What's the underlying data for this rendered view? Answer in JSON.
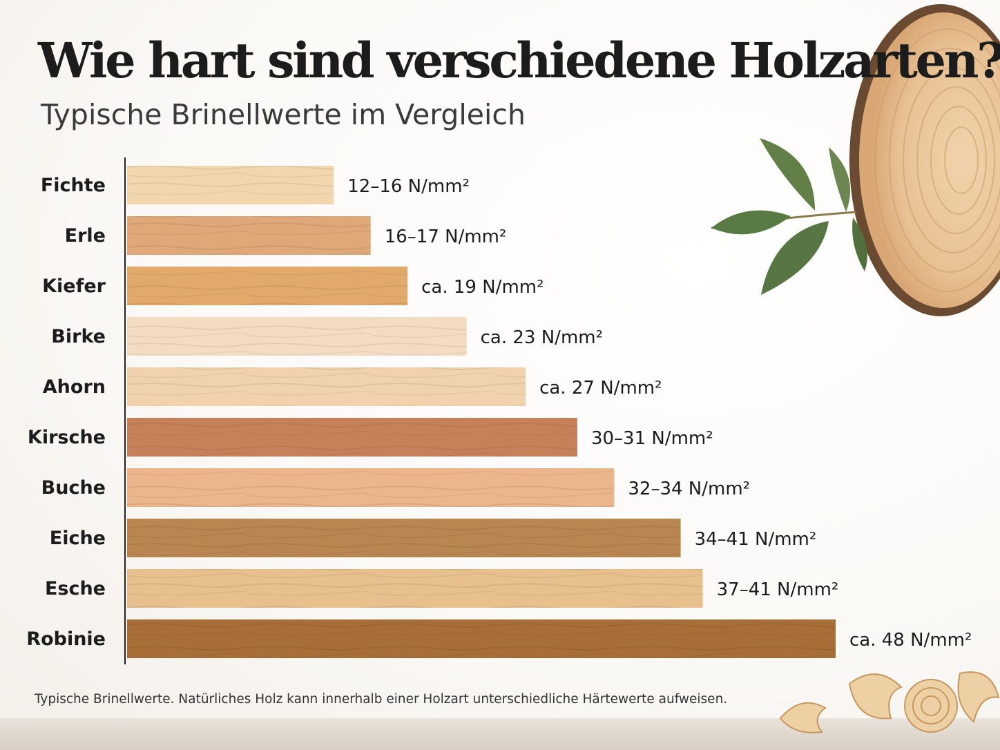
{
  "chart_data": {
    "type": "bar",
    "orientation": "horizontal",
    "title": "Wie hart sind verschiedene Holzarten?",
    "subtitle": "Typische Brinellwerte im Vergleich",
    "categories": [
      "Fichte",
      "Erle",
      "Kiefer",
      "Birke",
      "Ahorn",
      "Kirsche",
      "Buche",
      "Eiche",
      "Esche",
      "Robinie"
    ],
    "values": [
      14,
      16.5,
      19,
      23,
      27,
      30.5,
      33,
      37.5,
      39,
      48
    ],
    "value_labels": [
      "12–16 N/mm²",
      "16–17 N/mm²",
      "ca. 19 N/mm²",
      "ca. 23 N/mm²",
      "ca. 27 N/mm²",
      "30–31 N/mm²",
      "32–34 N/mm²",
      "34–41 N/mm²",
      "37–41 N/mm²",
      "ca. 48 N/mm²"
    ],
    "bar_colors": [
      "#f2d7ae",
      "#e0a778",
      "#e2aa6a",
      "#f3dcc2",
      "#f0d2ac",
      "#c8805a",
      "#ebb68c",
      "#b98550",
      "#e7c08e",
      "#a86e38"
    ],
    "unit": "N/mm²",
    "xlim": [
      0,
      48
    ],
    "grid": false,
    "legend": "none"
  },
  "footnote": "Typische Brinellwerte. Natürliches Holz kann innerhalb einer Holzart unterschiedliche Härtewerte aufweisen.",
  "decor": [
    "wood-log-slice",
    "leaf-sprig",
    "wood-shavings"
  ]
}
